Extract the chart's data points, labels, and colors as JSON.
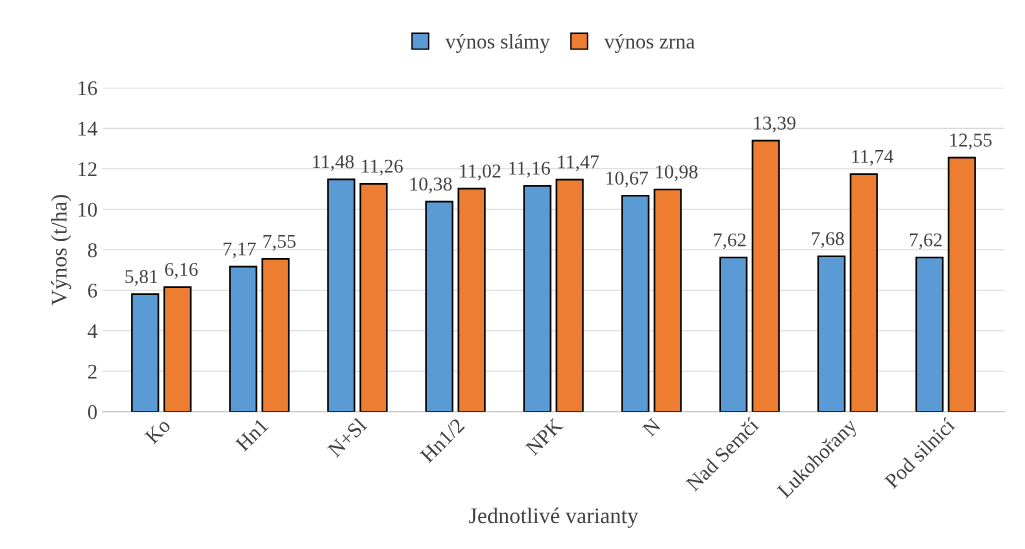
{
  "chart_data": {
    "type": "bar",
    "categories": [
      "Ko",
      "Hn1",
      "N+Sl",
      "Hn1/2",
      "NPK",
      "N",
      "Nad Semčí",
      "Lukohořany",
      "Pod silnicí"
    ],
    "series": [
      {
        "name": "výnos slámy",
        "color": "#5b9bd5",
        "values": [
          5.81,
          7.17,
          11.48,
          10.38,
          11.16,
          10.67,
          7.62,
          7.68,
          7.62
        ],
        "value_labels": [
          "5,81",
          "7,17",
          "11,48",
          "10,38",
          "11,16",
          "10,67",
          "7,62",
          "7,68",
          "7,62"
        ]
      },
      {
        "name": "výnos zrna",
        "color": "#ed7d31",
        "values": [
          6.16,
          7.55,
          11.26,
          11.02,
          11.47,
          10.98,
          13.39,
          11.74,
          12.55
        ],
        "value_labels": [
          "6,16",
          "7,55",
          "11,26",
          "11,02",
          "11,47",
          "10,98",
          "13,39",
          "11,74",
          "12,55"
        ]
      }
    ],
    "xlabel": "Jednotlivé varianty",
    "ylabel": "Výnos (t/ha)",
    "ylim": [
      0,
      16
    ],
    "yticks": [
      0,
      2,
      4,
      6,
      8,
      10,
      12,
      14,
      16
    ],
    "grid": "y",
    "legend": "top"
  }
}
